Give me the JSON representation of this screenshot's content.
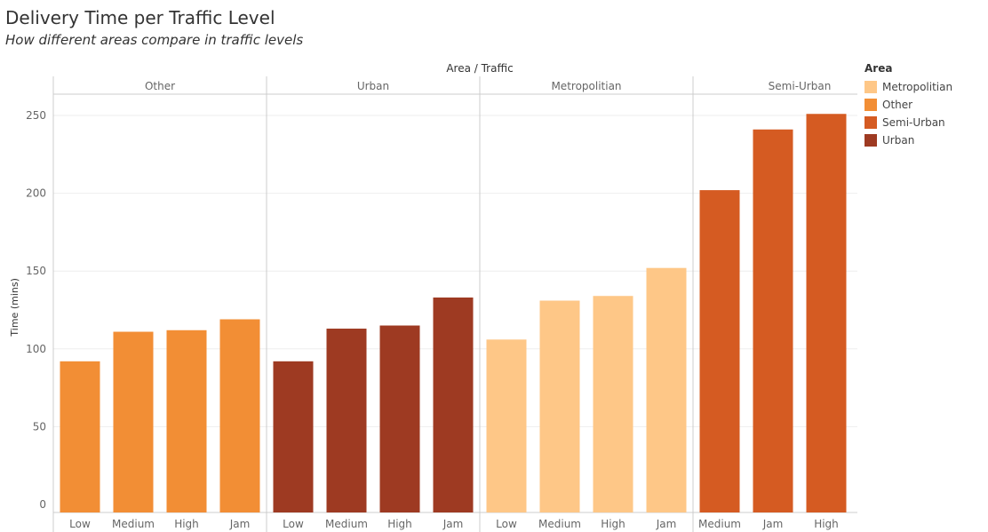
{
  "title": "Delivery Time per Traffic Level",
  "subtitle": "How different areas  compare in traffic levels",
  "legend": {
    "title": "Area",
    "items": [
      {
        "label": "Metropolitian",
        "color": "#FEC787"
      },
      {
        "label": "Other",
        "color": "#F28E35"
      },
      {
        "label": "Semi-Urban",
        "color": "#D55B22"
      },
      {
        "label": "Urban",
        "color": "#9E3A22"
      }
    ]
  },
  "chart_data": {
    "type": "bar",
    "title": "Delivery Time per Traffic Level",
    "column_header": "Area / Traffic",
    "ylabel": "Time (mins)",
    "ylim": [
      0,
      265
    ],
    "yticks": [
      0,
      50,
      100,
      150,
      200,
      250
    ],
    "grid": true,
    "legend_position": "right",
    "panels": [
      {
        "name": "Other",
        "color": "#F28E35",
        "categories": [
          "Low",
          "Medium",
          "High",
          "Jam"
        ],
        "values": [
          92,
          111,
          112,
          119
        ]
      },
      {
        "name": "Urban",
        "color": "#9E3A22",
        "categories": [
          "Low",
          "Medium",
          "High",
          "Jam"
        ],
        "values": [
          92,
          113,
          115,
          133
        ]
      },
      {
        "name": "Metropolitian",
        "color": "#FEC787",
        "categories": [
          "Low",
          "Medium",
          "High",
          "Jam"
        ],
        "values": [
          106,
          131,
          134,
          152
        ]
      },
      {
        "name": "Semi-Urban",
        "color": "#D55B22",
        "categories": [
          "Medium",
          "Jam",
          "High"
        ],
        "values": [
          202,
          241,
          251
        ]
      }
    ]
  }
}
